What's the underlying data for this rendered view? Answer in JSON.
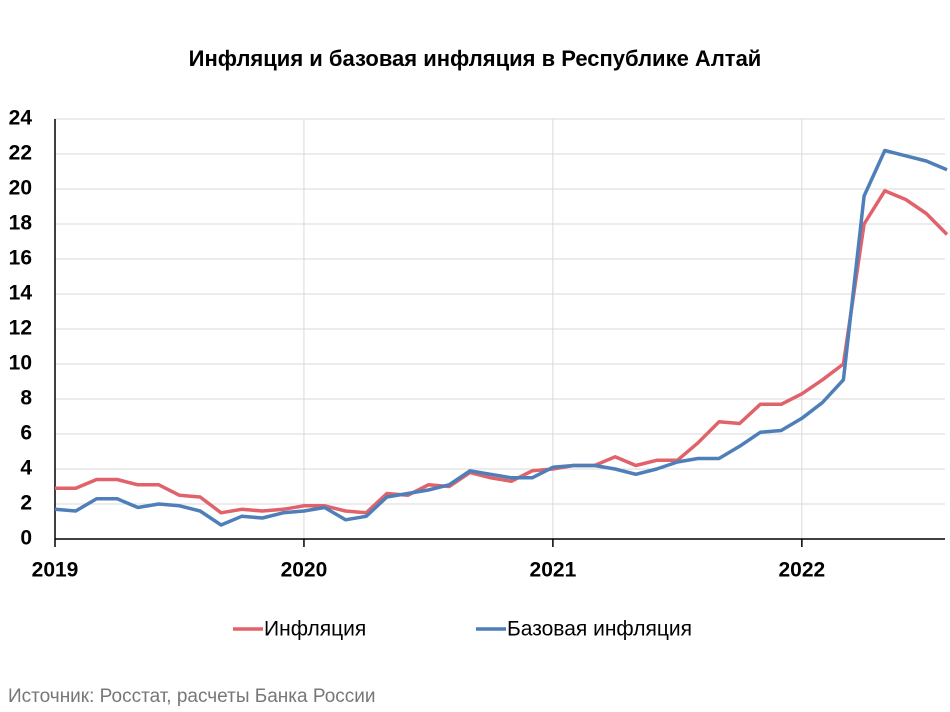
{
  "chart_data": {
    "type": "line",
    "title": "Инфляция и базовая инфляция в Республике Алтай",
    "source": "Источник: Росстат, расчеты Банка России",
    "x": [
      2019,
      2019.083,
      2019.167,
      2019.25,
      2019.333,
      2019.417,
      2019.5,
      2019.583,
      2019.667,
      2019.75,
      2019.833,
      2019.917,
      2020,
      2020.083,
      2020.167,
      2020.25,
      2020.333,
      2020.417,
      2020.5,
      2020.583,
      2020.667,
      2020.75,
      2020.833,
      2020.917,
      2021,
      2021.083,
      2021.167,
      2021.25,
      2021.333,
      2021.417,
      2021.5,
      2021.583,
      2021.667,
      2021.75,
      2021.833,
      2021.917,
      2022,
      2022.083,
      2022.167,
      2022.25,
      2022.333,
      2022.417,
      2022.5,
      2022.583
    ],
    "series": [
      {
        "name": "Инфляция",
        "color": "#e0636b",
        "values": [
          2.9,
          2.9,
          3.4,
          3.4,
          3.1,
          3.1,
          2.5,
          2.4,
          1.5,
          1.7,
          1.6,
          1.7,
          1.9,
          1.9,
          1.6,
          1.5,
          2.6,
          2.5,
          3.1,
          3.0,
          3.8,
          3.5,
          3.3,
          3.9,
          4.0,
          4.2,
          4.2,
          4.7,
          4.2,
          4.5,
          4.5,
          5.5,
          6.7,
          6.6,
          7.7,
          7.7,
          8.3,
          9.1,
          10.0,
          18.0,
          19.9,
          19.4,
          18.6,
          17.4
        ]
      },
      {
        "name": "Базовая инфляция",
        "color": "#4f7fb8",
        "values": [
          1.7,
          1.6,
          2.3,
          2.3,
          1.8,
          2.0,
          1.9,
          1.6,
          0.8,
          1.3,
          1.2,
          1.5,
          1.6,
          1.8,
          1.1,
          1.3,
          2.4,
          2.6,
          2.8,
          3.1,
          3.9,
          3.7,
          3.5,
          3.5,
          4.1,
          4.2,
          4.2,
          4.0,
          3.7,
          4.0,
          4.4,
          4.6,
          4.6,
          5.3,
          6.1,
          6.2,
          6.9,
          7.8,
          9.1,
          19.6,
          22.2,
          21.9,
          21.6,
          21.1
        ]
      }
    ],
    "xlim": [
      2019,
      2022.575
    ],
    "xticks": [
      2019,
      2020,
      2021,
      2022
    ],
    "ylim": [
      0,
      24
    ],
    "yticks": [
      0,
      2,
      4,
      6,
      8,
      10,
      12,
      14,
      16,
      18,
      20,
      22,
      24
    ],
    "grid": true,
    "legend": "bottom"
  }
}
